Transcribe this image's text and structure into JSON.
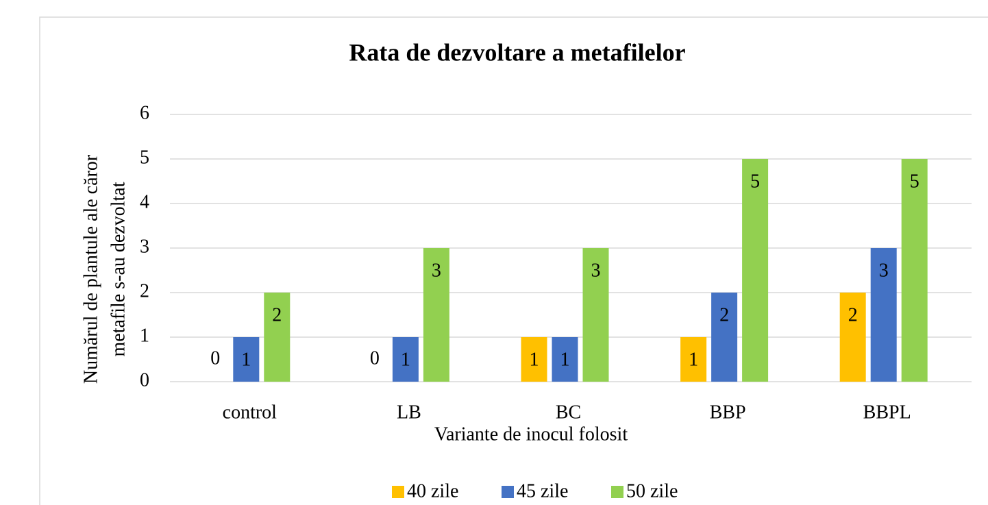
{
  "chart_data": {
    "type": "bar",
    "title": "Rata de dezvoltare a metafilelor",
    "xlabel": "Variante de inocul folosit",
    "ylabel": [
      "Numărul de plantule ale căror",
      "metafile s-au dezvoltat"
    ],
    "categories": [
      "control",
      "LB",
      "BC",
      "BBP",
      "BBPL"
    ],
    "series": [
      {
        "name": "40 zile",
        "color": "#ffc000",
        "values": [
          0,
          0,
          1,
          1,
          2
        ]
      },
      {
        "name": "45 zile",
        "color": "#4472c4",
        "values": [
          1,
          1,
          1,
          2,
          3
        ]
      },
      {
        "name": "50 zile",
        "color": "#92d050",
        "values": [
          2,
          3,
          3,
          5,
          5
        ]
      }
    ],
    "ylim": [
      0,
      6
    ],
    "yticks": [
      0,
      1,
      2,
      3,
      4,
      5,
      6
    ],
    "grid": true,
    "legend": "bottom"
  }
}
